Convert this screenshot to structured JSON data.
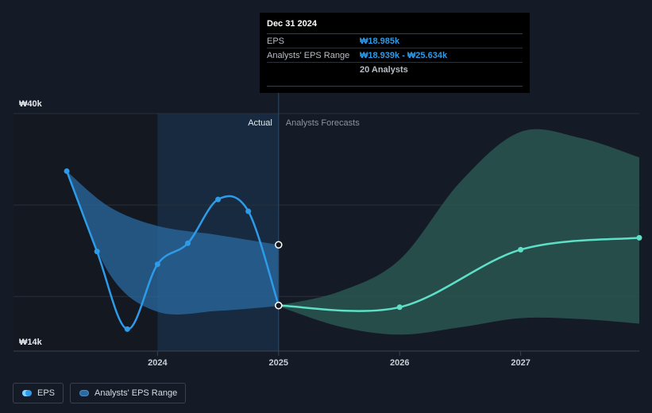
{
  "chart_data": {
    "type": "line",
    "y_ticks": [
      "₩40k",
      "₩14k"
    ],
    "ylim": [
      14000,
      40000
    ],
    "x_ticks": [
      {
        "label": "2024",
        "x": 2024.0
      },
      {
        "label": "2025",
        "x": 2025.0
      },
      {
        "label": "2026",
        "x": 2026.0
      },
      {
        "label": "2027",
        "x": 2027.0
      }
    ],
    "xlim": [
      2022.81,
      2027.98
    ],
    "region_labels": {
      "actual": "Actual",
      "forecast": "Analysts Forecasts"
    },
    "series": [
      {
        "name": "EPS",
        "color": "#2e9be8",
        "points": [
          {
            "x": 2023.25,
            "y": 33700
          },
          {
            "x": 2023.5,
            "y": 24900
          },
          {
            "x": 2023.75,
            "y": 16400
          },
          {
            "x": 2024.0,
            "y": 23500
          },
          {
            "x": 2024.25,
            "y": 25800
          },
          {
            "x": 2024.5,
            "y": 30600
          },
          {
            "x": 2024.75,
            "y": 29300
          },
          {
            "x": 2025.0,
            "y": 18985
          }
        ]
      },
      {
        "name": "EPS (forecast)",
        "color": "#5ee0c8",
        "points": [
          {
            "x": 2025.0,
            "y": 18985
          },
          {
            "x": 2026.0,
            "y": 18800
          },
          {
            "x": 2027.0,
            "y": 25100
          },
          {
            "x": 2027.98,
            "y": 26400
          }
        ]
      }
    ],
    "range_series": [
      {
        "name": "Analysts' EPS Range (actual)",
        "color": "#2a6aa0",
        "upper": [
          {
            "x": 2023.25,
            "y": 33700
          },
          {
            "x": 2023.6,
            "y": 29800
          },
          {
            "x": 2024.0,
            "y": 27700
          },
          {
            "x": 2024.5,
            "y": 26700
          },
          {
            "x": 2025.0,
            "y": 25634
          }
        ],
        "lower": [
          {
            "x": 2023.25,
            "y": 33700
          },
          {
            "x": 2023.6,
            "y": 22500
          },
          {
            "x": 2024.0,
            "y": 18300
          },
          {
            "x": 2024.5,
            "y": 18400
          },
          {
            "x": 2025.0,
            "y": 18939
          }
        ]
      },
      {
        "name": "Analysts' EPS Range (forecast)",
        "color": "#2c5a54",
        "upper": [
          {
            "x": 2025.0,
            "y": 19000
          },
          {
            "x": 2025.5,
            "y": 20500
          },
          {
            "x": 2026.0,
            "y": 24000
          },
          {
            "x": 2026.5,
            "y": 32500
          },
          {
            "x": 2027.0,
            "y": 38000
          },
          {
            "x": 2027.5,
            "y": 37300
          },
          {
            "x": 2027.98,
            "y": 35200
          }
        ],
        "lower": [
          {
            "x": 2025.0,
            "y": 18900
          },
          {
            "x": 2025.5,
            "y": 16700
          },
          {
            "x": 2026.0,
            "y": 15800
          },
          {
            "x": 2026.5,
            "y": 16600
          },
          {
            "x": 2027.0,
            "y": 17600
          },
          {
            "x": 2027.5,
            "y": 17500
          },
          {
            "x": 2027.98,
            "y": 17000
          }
        ]
      }
    ]
  },
  "tooltip": {
    "date": "Dec 31 2024",
    "eps_label": "EPS",
    "eps_value": "₩18.985k",
    "range_label": "Analysts' EPS Range",
    "range_value": "₩18.939k - ₩25.634k",
    "analysts": "20 Analysts"
  },
  "legend": [
    {
      "label": "EPS",
      "color": "#2e9be8"
    },
    {
      "label": "Analysts' EPS Range",
      "color": "#2a6aa0"
    }
  ]
}
